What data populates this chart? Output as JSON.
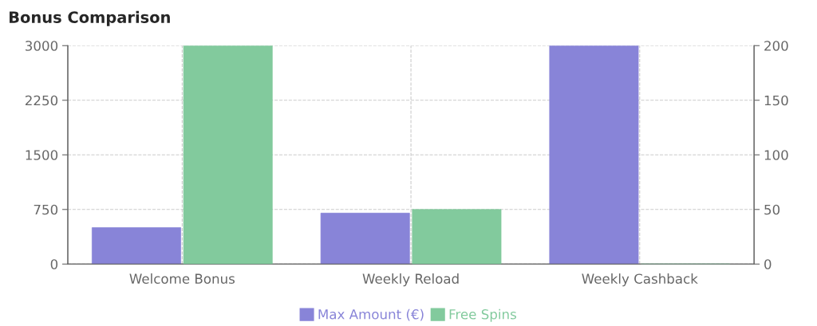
{
  "chart_data": {
    "type": "bar",
    "title": "Bonus Comparison",
    "categories": [
      "Welcome Bonus",
      "Weekly Reload",
      "Weekly Cashback"
    ],
    "series": [
      {
        "name": "Max Amount (€)",
        "color": "#8884d8",
        "values": [
          500,
          700,
          3000
        ]
      },
      {
        "name": "Free Spins",
        "color": "#82ca9d",
        "values": [
          200,
          50,
          0
        ],
        "axis": "y2"
      }
    ],
    "ylim": [
      0,
      3000
    ],
    "yticks": [
      0,
      750,
      1500,
      2250,
      3000
    ],
    "y2lim": [
      0,
      200
    ],
    "y2ticks": [
      0,
      50,
      100,
      150,
      200
    ],
    "grid": true,
    "legend": "bottom"
  }
}
